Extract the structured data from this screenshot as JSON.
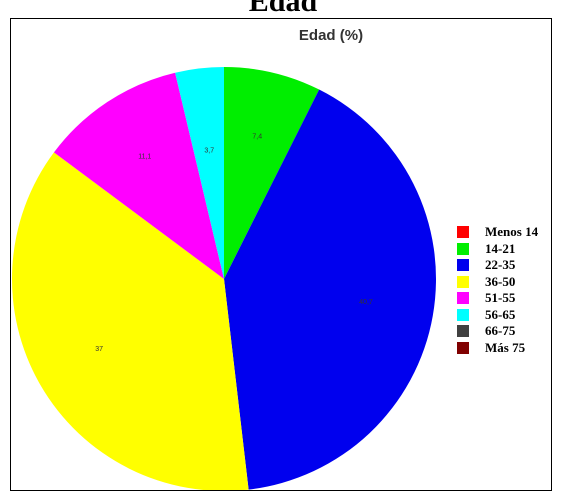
{
  "outer_title": "Edad",
  "chart_data": {
    "type": "pie",
    "title": "Edad (%)",
    "start_angle_deg": 0,
    "direction": "clockwise",
    "slices": [
      {
        "name": "Menos 14",
        "value": 0,
        "label": "",
        "color": "#ff0000"
      },
      {
        "name": "14-21",
        "value": 7.4,
        "label": "7,4",
        "color": "#00ee00"
      },
      {
        "name": "22-35",
        "value": 40.7,
        "label": "40,7",
        "color": "#0000ee"
      },
      {
        "name": "36-50",
        "value": 37,
        "label": "37",
        "color": "#ffff00"
      },
      {
        "name": "51-55",
        "value": 11.1,
        "label": "11,1",
        "color": "#ff00ff"
      },
      {
        "name": "56-65",
        "value": 3.7,
        "label": "3,7",
        "color": "#00ffff"
      },
      {
        "name": "66-75",
        "value": 0,
        "label": "",
        "color": "#404040"
      },
      {
        "name": "Más  75",
        "value": 0,
        "label": "",
        "color": "#800000"
      }
    ],
    "legend_position": "right"
  }
}
